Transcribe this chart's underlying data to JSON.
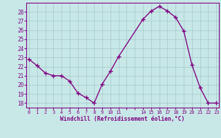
{
  "x": [
    0,
    1,
    2,
    3,
    4,
    5,
    6,
    7,
    8,
    9,
    10,
    11,
    14,
    15,
    16,
    17,
    18,
    19,
    20,
    21,
    22,
    23
  ],
  "y": [
    22.8,
    22.1,
    21.3,
    21.0,
    21.0,
    20.4,
    19.1,
    18.6,
    18.0,
    20.1,
    21.5,
    23.1,
    27.2,
    28.1,
    28.6,
    28.1,
    27.4,
    25.9,
    22.2,
    19.7,
    18.0,
    18.0
  ],
  "line_color": "#800080",
  "marker": "+",
  "marker_color": "#800080",
  "bg_color": "#c8e8e8",
  "grid_color": "#aacccc",
  "axis_color": "#800080",
  "xlabel": "Windchill (Refroidissement éolien,°C)",
  "xlabel_color": "#800080",
  "ylim": [
    17.5,
    29.0
  ],
  "yticks": [
    18,
    19,
    20,
    21,
    22,
    23,
    24,
    25,
    26,
    27,
    28
  ],
  "xlim": [
    -0.3,
    23.3
  ],
  "line_width": 1.0,
  "marker_size": 4
}
